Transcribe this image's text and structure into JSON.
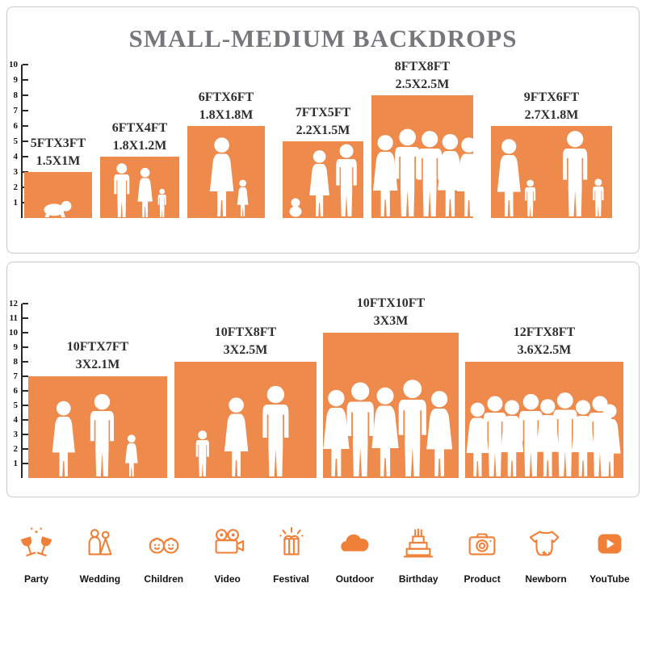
{
  "title": "SMALL-MEDIUM BACKDROPS",
  "colors": {
    "backdrop_orange": "#EE8A4C",
    "icon_orange": "#F08038"
  },
  "panel1": {
    "ruler": [
      1,
      2,
      3,
      4,
      5,
      6,
      7,
      8,
      9,
      10
    ],
    "backdrops": [
      {
        "size_ft": "5FTX3FT",
        "size_m": "1.5X1M"
      },
      {
        "size_ft": "6FTX4FT",
        "size_m": "1.8X1.2M"
      },
      {
        "size_ft": "6FTX6FT",
        "size_m": "1.8X1.8M"
      },
      {
        "size_ft": "7FTX5FT",
        "size_m": "2.2X1.5M"
      },
      {
        "size_ft": "8FTX8FT",
        "size_m": "2.5X2.5M"
      },
      {
        "size_ft": "9FTX6FT",
        "size_m": "2.7X1.8M"
      }
    ]
  },
  "panel2": {
    "ruler": [
      1,
      2,
      3,
      4,
      5,
      6,
      7,
      8,
      9,
      10,
      11,
      12
    ],
    "backdrops": [
      {
        "size_ft": "10FTX7FT",
        "size_m": "3X2.1M"
      },
      {
        "size_ft": "10FTX8FT",
        "size_m": "3X2.5M"
      },
      {
        "size_ft": "10FTX10FT",
        "size_m": "3X3M"
      },
      {
        "size_ft": "12FTX8FT",
        "size_m": "3.6X2.5M"
      }
    ]
  },
  "categories": [
    {
      "label": "Party",
      "icon": "party-glasses-icon"
    },
    {
      "label": "Wedding",
      "icon": "wedding-couple-icon"
    },
    {
      "label": "Children",
      "icon": "children-faces-icon"
    },
    {
      "label": "Video",
      "icon": "movie-camera-icon"
    },
    {
      "label": "Festival",
      "icon": "festival-gift-icon"
    },
    {
      "label": "Outdoor",
      "icon": "cloud-icon"
    },
    {
      "label": "Birthday",
      "icon": "birthday-cake-icon"
    },
    {
      "label": "Product",
      "icon": "photo-camera-icon"
    },
    {
      "label": "Newborn",
      "icon": "baby-onesie-icon"
    },
    {
      "label": "YouTube",
      "icon": "youtube-play-icon"
    }
  ]
}
